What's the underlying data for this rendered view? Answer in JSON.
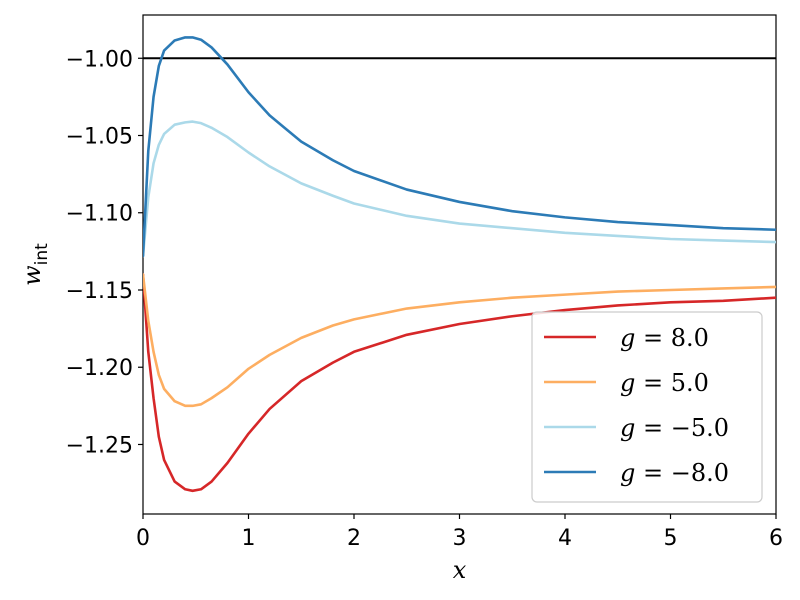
{
  "chart_data": {
    "type": "line",
    "xlabel": "x",
    "ylabel": {
      "base": "w",
      "sub": "int"
    },
    "xlim": [
      0,
      6
    ],
    "ylim": [
      -1.295,
      -0.972
    ],
    "xticks": [
      0,
      1,
      2,
      3,
      4,
      5,
      6
    ],
    "xtick_labels": [
      "0",
      "1",
      "2",
      "3",
      "4",
      "5",
      "6"
    ],
    "yticks": [
      -1.0,
      -1.05,
      -1.1,
      -1.15,
      -1.2,
      -1.25
    ],
    "ytick_labels": [
      "−1.00",
      "−1.05",
      "−1.10",
      "−1.15",
      "−1.20",
      "−1.25"
    ],
    "grid": false,
    "legend_position": "lower-right",
    "reference_line": {
      "y": -1.0,
      "color": "#000000"
    },
    "series": [
      {
        "name": "g = 8.0",
        "legend_label": {
          "lhs": "g",
          "rhs": "= 8.0"
        },
        "color": "#d62728",
        "x": [
          0,
          0.05,
          0.1,
          0.15,
          0.2,
          0.3,
          0.4,
          0.47,
          0.55,
          0.65,
          0.8,
          1.0,
          1.2,
          1.5,
          1.8,
          2.0,
          2.5,
          3.0,
          3.5,
          4.0,
          4.5,
          5.0,
          5.5,
          6.0
        ],
        "y": [
          -1.14,
          -1.19,
          -1.22,
          -1.245,
          -1.26,
          -1.274,
          -1.279,
          -1.28,
          -1.279,
          -1.274,
          -1.262,
          -1.243,
          -1.227,
          -1.209,
          -1.197,
          -1.19,
          -1.179,
          -1.172,
          -1.167,
          -1.163,
          -1.16,
          -1.158,
          -1.157,
          -1.155
        ]
      },
      {
        "name": "g = 5.0",
        "legend_label": {
          "lhs": "g",
          "rhs": "= 5.0"
        },
        "color": "#fdae61",
        "x": [
          0,
          0.05,
          0.1,
          0.15,
          0.2,
          0.3,
          0.4,
          0.47,
          0.55,
          0.65,
          0.8,
          1.0,
          1.2,
          1.5,
          1.8,
          2.0,
          2.5,
          3.0,
          3.5,
          4.0,
          4.5,
          5.0,
          5.5,
          6.0
        ],
        "y": [
          -1.14,
          -1.17,
          -1.19,
          -1.205,
          -1.214,
          -1.222,
          -1.225,
          -1.225,
          -1.224,
          -1.22,
          -1.213,
          -1.201,
          -1.192,
          -1.181,
          -1.173,
          -1.169,
          -1.162,
          -1.158,
          -1.155,
          -1.153,
          -1.151,
          -1.15,
          -1.149,
          -1.148
        ]
      },
      {
        "name": "g = −5.0",
        "legend_label": {
          "lhs": "g",
          "rhs": "= −5.0"
        },
        "color": "#abd9e9",
        "x": [
          0,
          0.05,
          0.1,
          0.15,
          0.2,
          0.3,
          0.4,
          0.47,
          0.55,
          0.65,
          0.8,
          1.0,
          1.2,
          1.5,
          1.8,
          2.0,
          2.5,
          3.0,
          3.5,
          4.0,
          4.5,
          5.0,
          5.5,
          6.0
        ],
        "y": [
          -1.128,
          -1.09,
          -1.068,
          -1.056,
          -1.049,
          -1.043,
          -1.0415,
          -1.041,
          -1.042,
          -1.045,
          -1.051,
          -1.061,
          -1.07,
          -1.081,
          -1.089,
          -1.094,
          -1.102,
          -1.107,
          -1.11,
          -1.113,
          -1.115,
          -1.117,
          -1.118,
          -1.119
        ]
      },
      {
        "name": "g = −8.0",
        "legend_label": {
          "lhs": "g",
          "rhs": "= −8.0"
        },
        "color": "#2c7bb6",
        "x": [
          0,
          0.05,
          0.1,
          0.15,
          0.2,
          0.3,
          0.4,
          0.47,
          0.55,
          0.65,
          0.8,
          1.0,
          1.2,
          1.5,
          1.8,
          2.0,
          2.5,
          3.0,
          3.5,
          4.0,
          4.5,
          5.0,
          5.5,
          6.0
        ],
        "y": [
          -1.128,
          -1.06,
          -1.025,
          -1.005,
          -0.995,
          -0.9885,
          -0.9865,
          -0.9865,
          -0.988,
          -0.993,
          -1.004,
          -1.022,
          -1.037,
          -1.054,
          -1.066,
          -1.073,
          -1.085,
          -1.093,
          -1.099,
          -1.103,
          -1.106,
          -1.108,
          -1.11,
          -1.111
        ]
      }
    ]
  }
}
